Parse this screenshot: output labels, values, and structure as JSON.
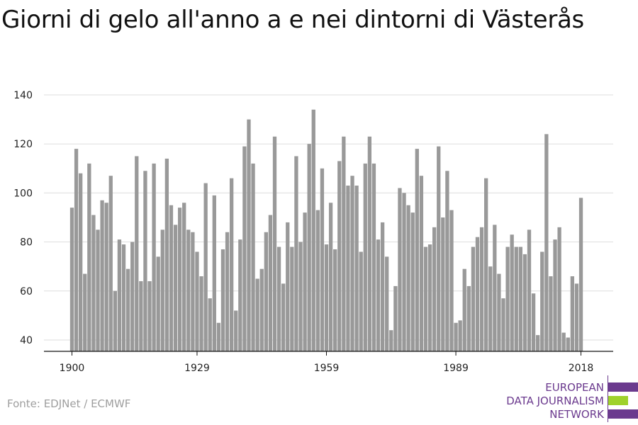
{
  "title": "Giorni di gelo all'anno a e nei dintorni di Västerås",
  "source": "Fonte: EDJNet / ECMWF",
  "logo": {
    "lines": [
      "EUROPEAN",
      "DATA JOURNALISM",
      "NETWORK"
    ],
    "color": "#6b3a8e",
    "accent": "#9fd22c"
  },
  "colors": {
    "bar": "#999999",
    "grid": "#dddddd",
    "axis": "#111111"
  },
  "chart_data": {
    "type": "bar",
    "title": "Giorni di gelo all'anno a e nei dintorni di Västerås",
    "xlabel": "",
    "ylabel": "",
    "ylim": [
      35,
      140
    ],
    "yticks": [
      40,
      60,
      80,
      100,
      120,
      140
    ],
    "xticks": [
      1900,
      1929,
      1959,
      1989,
      2018
    ],
    "grid": true,
    "x_start": 1900,
    "categories": [
      1900,
      1901,
      1902,
      1903,
      1904,
      1905,
      1906,
      1907,
      1908,
      1909,
      1910,
      1911,
      1912,
      1913,
      1914,
      1915,
      1916,
      1917,
      1918,
      1919,
      1920,
      1921,
      1922,
      1923,
      1924,
      1925,
      1926,
      1927,
      1928,
      1929,
      1930,
      1931,
      1932,
      1933,
      1934,
      1935,
      1936,
      1937,
      1938,
      1939,
      1940,
      1941,
      1942,
      1943,
      1944,
      1945,
      1946,
      1947,
      1948,
      1949,
      1950,
      1951,
      1952,
      1953,
      1954,
      1955,
      1956,
      1957,
      1958,
      1959,
      1960,
      1961,
      1962,
      1963,
      1964,
      1965,
      1966,
      1967,
      1968,
      1969,
      1970,
      1971,
      1972,
      1973,
      1974,
      1975,
      1976,
      1977,
      1978,
      1979,
      1980,
      1981,
      1982,
      1983,
      1984,
      1985,
      1986,
      1987,
      1988,
      1989,
      1990,
      1991,
      1992,
      1993,
      1994,
      1995,
      1996,
      1997,
      1998,
      1999,
      2000,
      2001,
      2002,
      2003,
      2004,
      2005,
      2006,
      2007,
      2008,
      2009,
      2010,
      2011,
      2012,
      2013,
      2014,
      2015,
      2016,
      2017,
      2018
    ],
    "values": [
      94,
      118,
      108,
      67,
      112,
      91,
      85,
      97,
      96,
      107,
      60,
      81,
      79,
      69,
      80,
      115,
      64,
      109,
      64,
      112,
      74,
      85,
      114,
      95,
      87,
      94,
      96,
      85,
      84,
      76,
      66,
      104,
      57,
      99,
      47,
      77,
      84,
      106,
      52,
      81,
      119,
      130,
      112,
      65,
      69,
      84,
      91,
      123,
      78,
      63,
      88,
      78,
      115,
      80,
      92,
      120,
      134,
      93,
      110,
      79,
      96,
      77,
      113,
      123,
      103,
      107,
      103,
      76,
      112,
      123,
      112,
      81,
      88,
      74,
      44,
      62,
      102,
      100,
      95,
      92,
      118,
      107,
      78,
      79,
      86,
      119,
      90,
      109,
      93,
      47,
      48,
      69,
      62,
      78,
      82,
      86,
      106,
      70,
      87,
      67,
      57,
      78,
      83,
      78,
      78,
      75,
      85,
      59,
      42,
      76,
      124,
      66,
      81,
      86,
      43,
      41,
      66,
      63,
      98
    ]
  }
}
